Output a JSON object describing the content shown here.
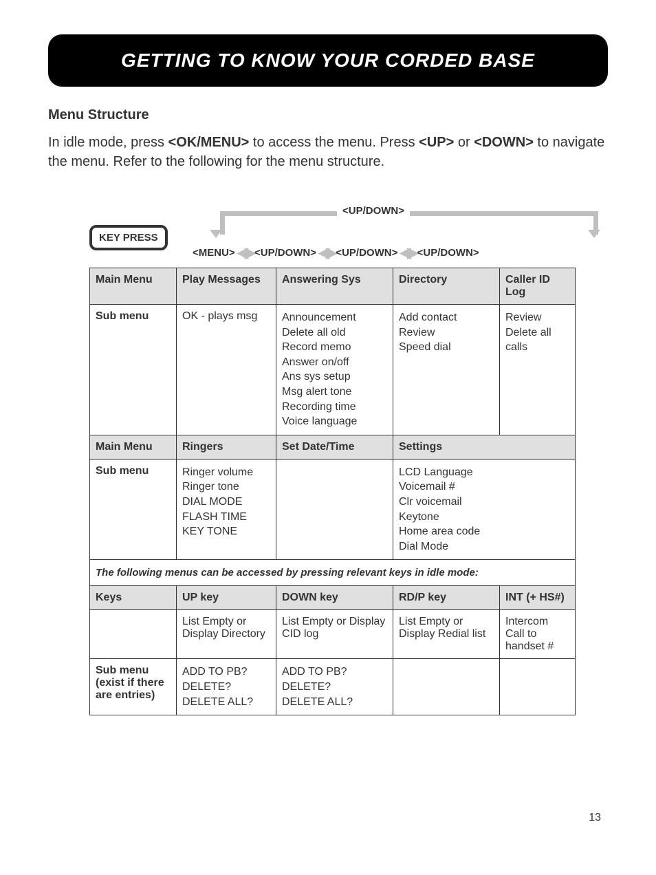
{
  "header": "GETTING TO KNOW YOUR CORDED BASE",
  "section_title": "Menu Structure",
  "intro": {
    "prefix": "In idle mode, press ",
    "btn1": "<OK/MENU>",
    "mid1": " to access the menu. Press ",
    "btn2": "<UP>",
    "mid2": " or ",
    "btn3": "<DOWN>",
    "suffix": " to navigate the menu. Refer to the following for the menu structure."
  },
  "keypress": "KEY PRESS",
  "top_nav_label": "<UP/DOWN>",
  "menu_nav": {
    "menu": "<MENU>",
    "updown": "<UP/DOWN>"
  },
  "table1": {
    "headers": [
      "Main Menu",
      "Play Messages",
      "Answering Sys",
      "Directory",
      "Caller ID Log"
    ],
    "row_label": "Sub menu",
    "cells": {
      "play": "OK - plays msg",
      "ans": [
        "Announcement",
        "Delete all old",
        "Record memo",
        "Answer on/off",
        "Ans sys setup",
        "Msg alert tone",
        "Recording time",
        "Voice language"
      ],
      "dir": [
        "Add contact",
        "Review",
        "Speed dial"
      ],
      "cid": [
        "Review",
        "Delete all calls"
      ]
    }
  },
  "table2": {
    "headers": [
      "Main Menu",
      "Ringers",
      "Set Date/Time",
      "Settings"
    ],
    "row_label": "Sub menu",
    "cells": {
      "ringers": [
        "Ringer volume",
        "Ringer tone",
        "DIAL MODE",
        "FLASH TIME",
        "KEY TONE"
      ],
      "settings": [
        "LCD Language",
        "Voicemail #",
        "Clr voicemail",
        "Keytone",
        "Home area code",
        "Dial Mode"
      ]
    }
  },
  "sep_note": "The following menus can be accessed by pressing relevant keys in idle mode:",
  "table3": {
    "headers": [
      "Keys",
      "UP key",
      "DOWN key",
      "RD/P key",
      "INT (+ HS#)"
    ],
    "row2_label": "Sub menu (exist if there are entries)",
    "cells": {
      "up1": "List Empty or Display Directory",
      "down1": "List Empty or Display CID log",
      "rdp1": "List Empty or Display Redial list",
      "int1": "Intercom Call to handset #",
      "up2": [
        "ADD TO PB?",
        "DELETE?",
        "DELETE ALL?"
      ],
      "down2": [
        "ADD TO PB?",
        "DELETE?",
        "DELETE ALL?"
      ]
    }
  },
  "page_number": "13"
}
